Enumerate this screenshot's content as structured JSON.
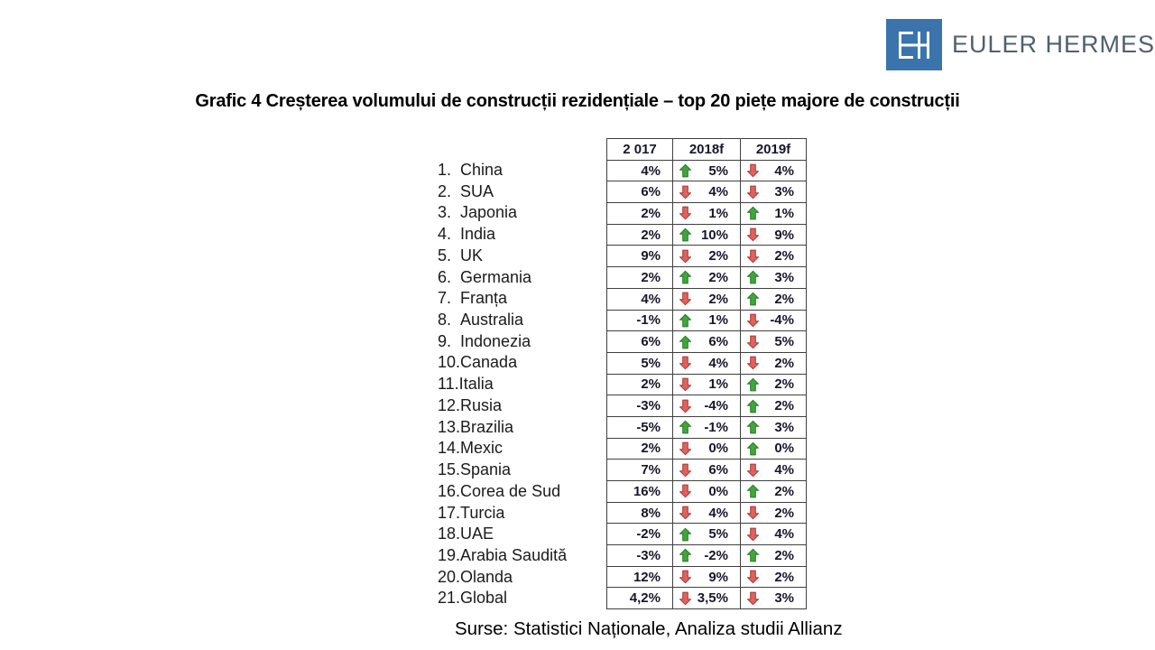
{
  "logo": {
    "name": "EULER HERMES",
    "monogram": "EH"
  },
  "title": "Grafic 4 Creșterea volumului de construcții rezidențiale – top 20 piețe majore de construcții",
  "footer": "Surse: Statistici Naționale, Analiza studii Allianz",
  "colors": {
    "logo_blue": "#3b74ad",
    "logo_text": "#50606d",
    "table_border": "#404040",
    "arrow_up": {
      "fill": "#41a53c",
      "stroke": "#257a23"
    },
    "arrow_down": {
      "fill": "#e0625f",
      "stroke": "#a63734"
    }
  },
  "chart_data": {
    "type": "table",
    "title": "Creșterea volumului de construcții rezidențiale – top 20 piețe majore de construcții",
    "columns": [
      "2 017",
      "2018f",
      "2019f"
    ],
    "categories": [
      "China",
      "SUA",
      "Japonia",
      "India",
      "UK",
      "Germania",
      "Franța",
      "Australia",
      "Indonezia",
      "Canada",
      "Italia",
      "Rusia",
      "Brazilia",
      "Mexic",
      "Spania",
      "Corea de Sud",
      "Turcia",
      "UAE",
      "Arabia Saudită",
      "Olanda",
      "Global"
    ],
    "series": [
      {
        "name": "2 017",
        "values": [
          "4%",
          "6%",
          "2%",
          "2%",
          "9%",
          "2%",
          "4%",
          "-1%",
          "6%",
          "5%",
          "2%",
          "-3%",
          "-5%",
          "2%",
          "7%",
          "16%",
          "8%",
          "-2%",
          "-3%",
          "12%",
          "4,2%"
        ]
      },
      {
        "name": "2018f",
        "values": [
          "5%",
          "4%",
          "1%",
          "10%",
          "2%",
          "2%",
          "2%",
          "1%",
          "6%",
          "4%",
          "1%",
          "-4%",
          "-1%",
          "0%",
          "6%",
          "0%",
          "4%",
          "5%",
          "-2%",
          "9%",
          "3,5%"
        ],
        "directions": [
          "up",
          "down",
          "down",
          "up",
          "down",
          "up",
          "down",
          "up",
          "up",
          "down",
          "down",
          "down",
          "up",
          "down",
          "down",
          "down",
          "down",
          "up",
          "up",
          "down",
          "down"
        ]
      },
      {
        "name": "2019f",
        "values": [
          "4%",
          "3%",
          "1%",
          "9%",
          "2%",
          "3%",
          "2%",
          "-4%",
          "5%",
          "2%",
          "2%",
          "2%",
          "3%",
          "0%",
          "4%",
          "2%",
          "2%",
          "4%",
          "2%",
          "2%",
          "3%"
        ],
        "directions": [
          "down",
          "down",
          "up",
          "down",
          "down",
          "up",
          "up",
          "down",
          "down",
          "down",
          "up",
          "up",
          "up",
          "up",
          "down",
          "up",
          "down",
          "down",
          "up",
          "down",
          "down"
        ]
      }
    ],
    "legend": "green up arrow = improvement vs previous year, red down arrow = decline vs previous year",
    "grid": "all cell borders visible"
  }
}
